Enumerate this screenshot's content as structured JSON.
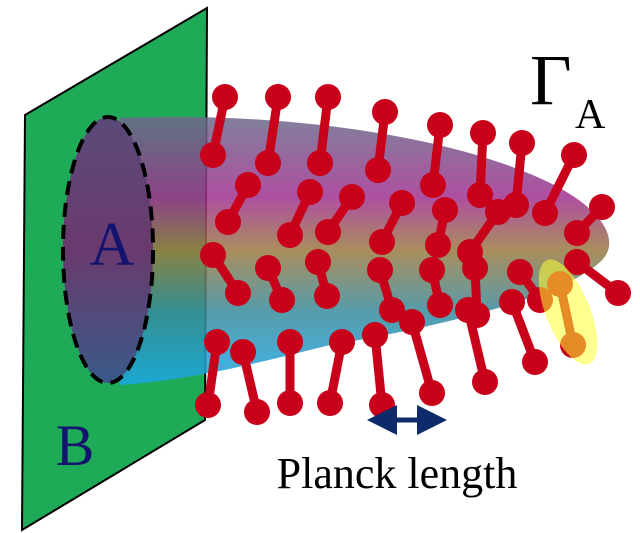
{
  "labels": {
    "region_a": "A",
    "region_b": "B",
    "gamma": "Γ",
    "gamma_subscript": "A",
    "planck": "Planck length"
  }
}
